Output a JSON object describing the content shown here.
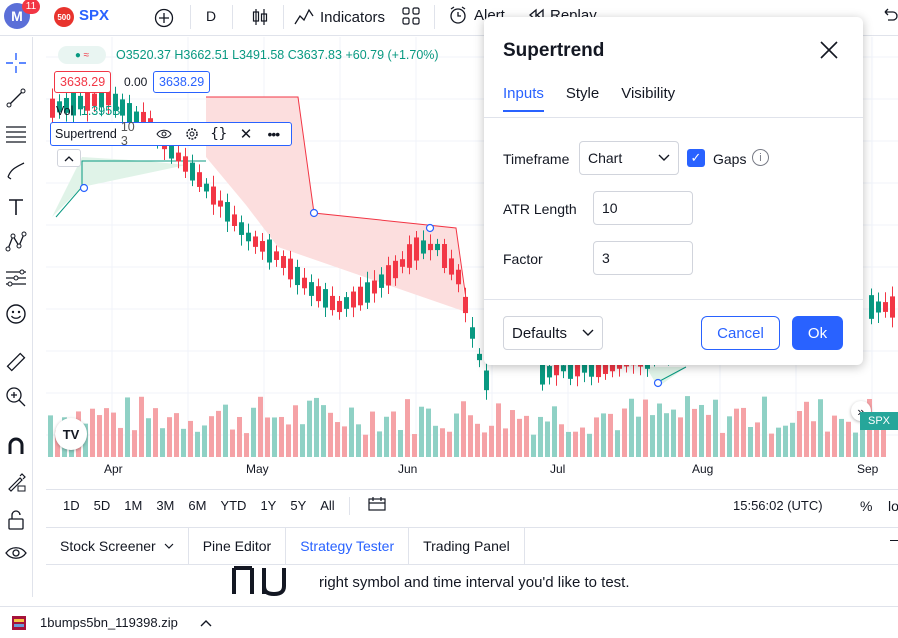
{
  "topbar": {
    "avatar_letter": "M",
    "avatar_badge": "11",
    "symbol_badge": "500",
    "symbol": "SPX",
    "add_symbol_icon": "plus-circle-icon",
    "interval": "D",
    "chart_type_icon": "candles-icon",
    "indicators_label": "Indicators",
    "layout_icon": "grid-icon",
    "alert_label": "Alert",
    "replay_label": "Replay",
    "undo_icon": "undo-icon"
  },
  "leftbar": {
    "icons": [
      "crosshair-icon",
      "trendline-icon",
      "fib-icon",
      "brush-icon",
      "text-icon",
      "pattern-icon",
      "prediction-icon",
      "emoji-icon",
      "ruler-icon",
      "zoom-icon",
      "magnet-icon",
      "lock-drawing-icon",
      "lock-icon",
      "eye-icon"
    ]
  },
  "chart": {
    "ohlc_open": "O3520.37",
    "ohlc_high": "H3662.51",
    "ohlc_low": "L3491.58",
    "ohlc_close": "C3637.83",
    "ohlc_change": "+60.79 (+1.70%)",
    "price_bid": "3638.29",
    "price_spread": "0.00",
    "price_ask": "3638.29",
    "vol_label": "Vol",
    "vol_value": "1.395B",
    "indicator_name": "Supertrend",
    "indicator_params": "10 3",
    "logo_text": "TV",
    "right_tag": "SPX",
    "x_labels": [
      "Apr",
      "May",
      "Jun",
      "Jul",
      "Aug",
      "Sep"
    ],
    "colors": {
      "up": "#089981",
      "down": "#f23645",
      "vol_up": "#8fd1c5",
      "vol_down": "#f5a2a6",
      "trend_up_fill": "#e0f3e8",
      "trend_down_fill": "#fcdede"
    }
  },
  "rangebar": {
    "ranges": [
      "1D",
      "5D",
      "1M",
      "3M",
      "6M",
      "YTD",
      "1Y",
      "5Y",
      "All"
    ],
    "time": "15:56:02 (UTC)",
    "percent": "%",
    "log": "lo"
  },
  "bottom_panel": {
    "tabs": [
      "Stock Screener",
      "Pine Editor",
      "Strategy Tester",
      "Trading Panel"
    ],
    "active_tab": "Strategy Tester",
    "text": "right symbol and time interval you'd like to test."
  },
  "download": {
    "filename": "1bumps5bn_119398.zip"
  },
  "dialog": {
    "title": "Supertrend",
    "tabs": [
      "Inputs",
      "Style",
      "Visibility"
    ],
    "timeframe_label": "Timeframe",
    "timeframe_value": "Chart",
    "gaps_label": "Gaps",
    "gaps_checked": true,
    "atr_label": "ATR Length",
    "atr_value": "10",
    "factor_label": "Factor",
    "factor_value": "3",
    "defaults_label": "Defaults",
    "cancel_label": "Cancel",
    "ok_label": "Ok",
    "accent": "#2962ff"
  }
}
